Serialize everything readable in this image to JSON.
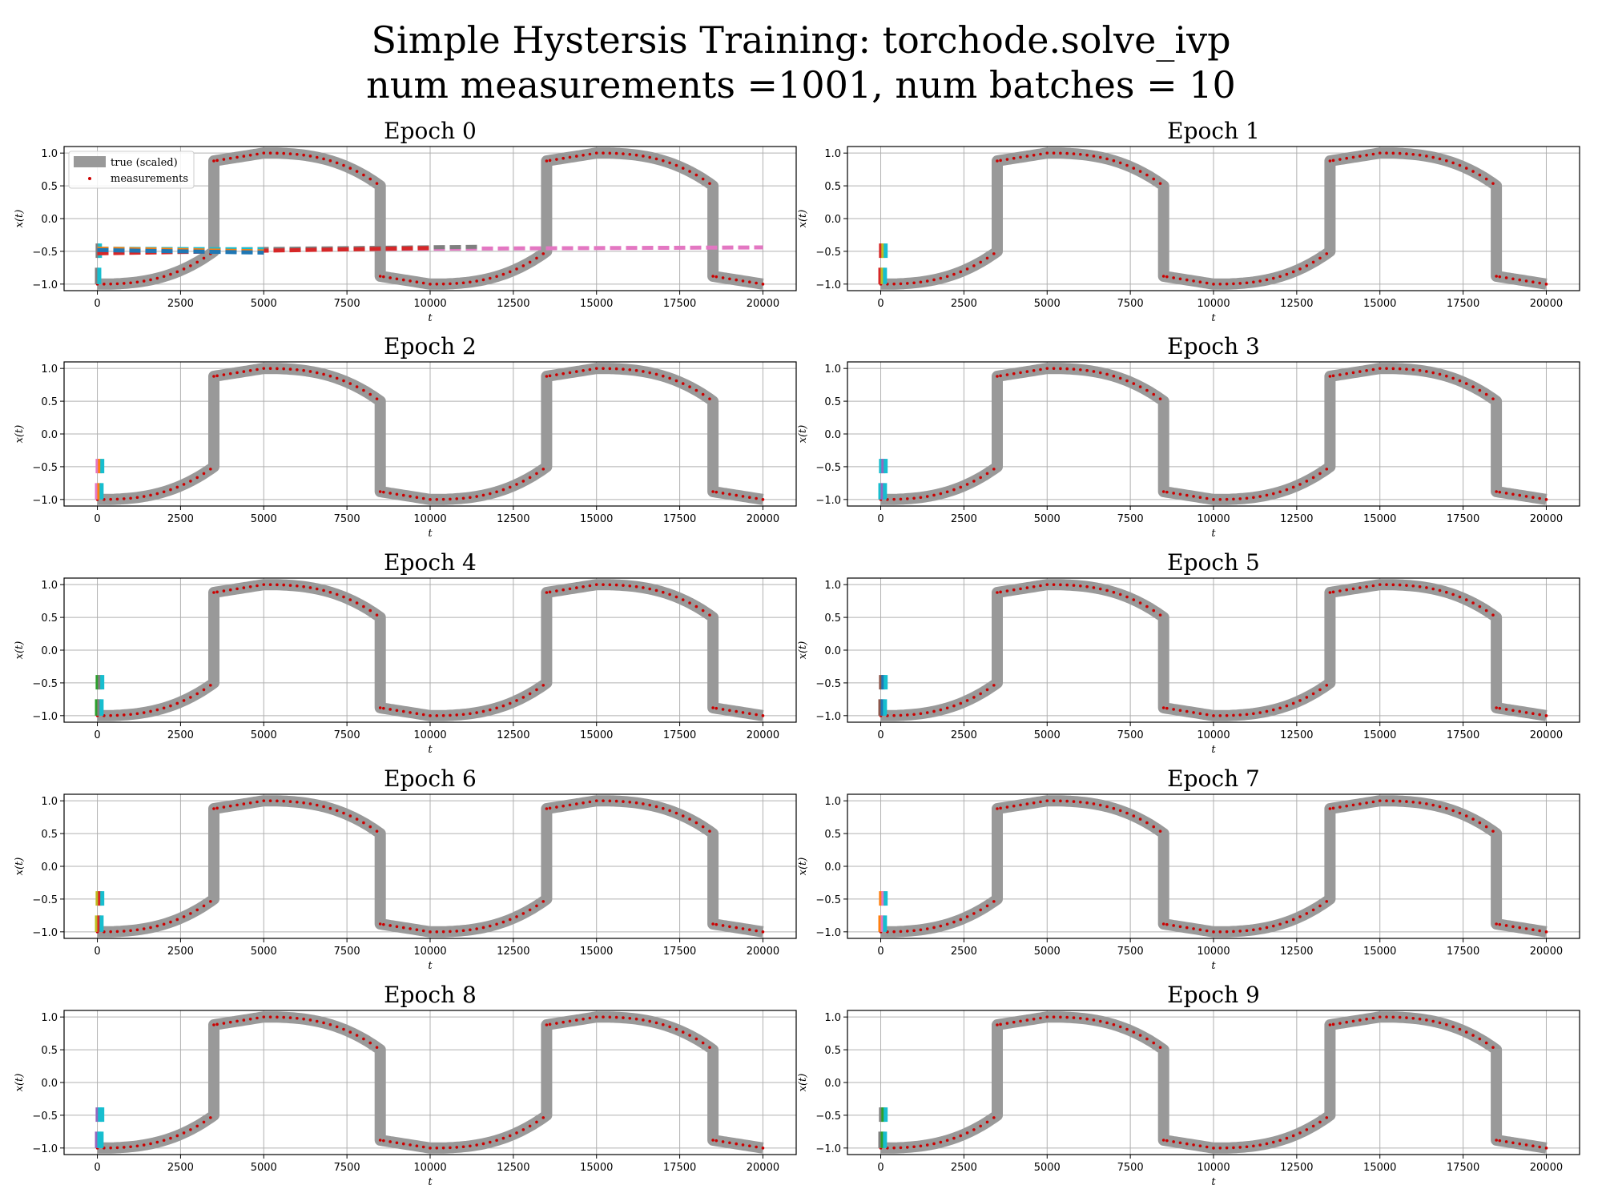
{
  "figure": {
    "title_line1": "Simple Hystersis Training: torchode.solve_ivp",
    "title_line2": "num measurements =1001, num batches = 10"
  },
  "axes_common": {
    "xlabel": "t",
    "ylabel": "x(t)",
    "xlim": [
      -1000,
      21000
    ],
    "ylim": [
      -1.1,
      1.1
    ],
    "xticks": [
      0,
      2500,
      5000,
      7500,
      10000,
      12500,
      15000,
      17500,
      20000
    ],
    "yticks": [
      -1.0,
      -0.5,
      0.0,
      0.5,
      1.0
    ],
    "ytick_labels": [
      "−1.0",
      "−0.5",
      "0.0",
      "0.5",
      "1.0"
    ],
    "grid": true
  },
  "legend": {
    "location": "upper-left",
    "entries": [
      "true (scaled)",
      "measurements"
    ]
  },
  "colors": {
    "true": "#999999",
    "measurements": "#cc0000",
    "preds": [
      "#1f77b4",
      "#ff7f0e",
      "#2ca02c",
      "#d62728",
      "#9467bd",
      "#8c564b",
      "#e377c2",
      "#7f7f7f",
      "#bcbd22",
      "#17becf"
    ]
  },
  "chart_data": {
    "type": "line",
    "panels": [
      "Epoch 0",
      "Epoch 1",
      "Epoch 2",
      "Epoch 3",
      "Epoch 4",
      "Epoch 5",
      "Epoch 6",
      "Epoch 7",
      "Epoch 8",
      "Epoch 9"
    ],
    "true_curve_breakpoints": {
      "rise_times": [
        3500,
        13500
      ],
      "fall_times": [
        8500,
        18500
      ],
      "peak_times": [
        5000,
        15000
      ],
      "trough_times": [
        0,
        10000,
        20000
      ],
      "max": 1.0,
      "min": -1.0,
      "after_rise": 0.88,
      "after_fall": -0.88,
      "before_rise": -0.5,
      "before_fall": 0.5
    },
    "epoch0_predictions": [
      {
        "color": "pink",
        "x": [
          0,
          20000
        ],
        "y": [
          -0.48,
          -0.44
        ]
      },
      {
        "color": "gray",
        "x": [
          0,
          11500
        ],
        "y": [
          -0.49,
          -0.43
        ]
      },
      {
        "color": "red",
        "x": [
          0,
          10000
        ],
        "y": [
          -0.53,
          -0.45
        ]
      },
      {
        "color": "cyan",
        "x": [
          0,
          5000
        ],
        "y": [
          -0.46,
          -0.47
        ]
      },
      {
        "color": "orange",
        "x": [
          0,
          5000
        ],
        "y": [
          -0.46,
          -0.5
        ]
      },
      {
        "color": "blue",
        "x": [
          0,
          5000
        ],
        "y": [
          -0.48,
          -0.52
        ]
      }
    ],
    "early_prediction_bars": {
      "t_range": [
        0,
        200
      ],
      "y_groups": [
        [
          -1.0,
          -0.75
        ],
        [
          -0.6,
          -0.38
        ]
      ]
    }
  }
}
